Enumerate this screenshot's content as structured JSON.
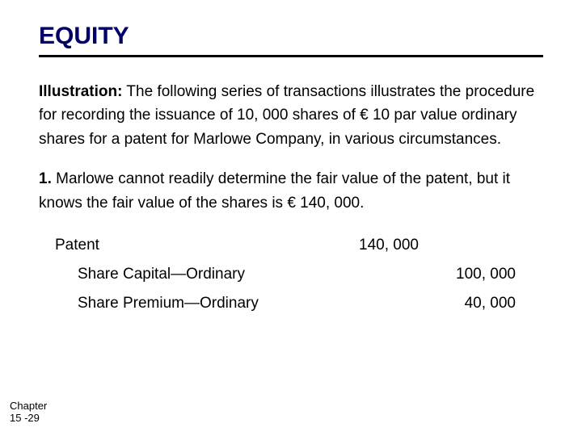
{
  "title": "EQUITY",
  "colors": {
    "title_color": "#000066",
    "rule_color": "#000000",
    "text_color": "#000000",
    "background": "#ffffff"
  },
  "typography": {
    "title_fontsize": 30,
    "body_fontsize": 19,
    "footer_fontsize": 13,
    "font_family": "Arial"
  },
  "illustration": {
    "label": "Illustration:",
    "text": "The following series of transactions illustrates the procedure for recording the issuance of 10, 000 shares of € 10 par value ordinary shares for a patent for Marlowe Company, in various circumstances."
  },
  "scenario": {
    "label": "1.",
    "text": "Marlowe cannot readily determine the fair value of the patent, but it knows the fair value of the shares is € 140, 000."
  },
  "journal_entry": {
    "rows": [
      {
        "account": "Patent",
        "debit": "140, 000",
        "credit": "",
        "indent": false
      },
      {
        "account": "Share Capital—Ordinary",
        "debit": "",
        "credit": "100, 000",
        "indent": true
      },
      {
        "account": "Share Premium—Ordinary",
        "debit": "",
        "credit": "40, 000",
        "indent": true
      }
    ]
  },
  "footer": "Chapter 15 -29"
}
